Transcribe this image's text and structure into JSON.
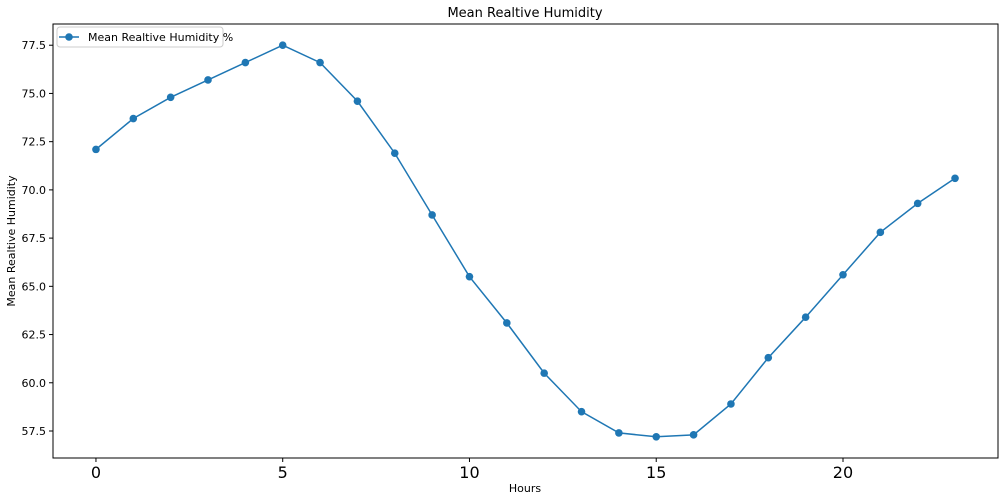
{
  "chart_data": {
    "type": "line",
    "title": "Mean Realtive Humidity",
    "xlabel": "Hours",
    "ylabel": "Mean Realtive Humidity",
    "xlim": [
      -1.15,
      24.15
    ],
    "ylim": [
      56.1,
      78.6
    ],
    "xticks": [
      0,
      5,
      10,
      15,
      20
    ],
    "xtick_labels": [
      "0",
      "5",
      "10",
      "15",
      "20"
    ],
    "yticks": [
      57.5,
      60.0,
      62.5,
      65.0,
      67.5,
      70.0,
      72.5,
      75.0,
      77.5
    ],
    "ytick_labels": [
      "57.5",
      "60.0",
      "62.5",
      "65.0",
      "67.5",
      "70.0",
      "72.5",
      "75.0",
      "77.5"
    ],
    "grid": false,
    "legend_position": "top-left",
    "color": "#1f77b4",
    "series": [
      {
        "name": "Mean Realtive Humidity %",
        "x": [
          0,
          1,
          2,
          3,
          4,
          5,
          6,
          7,
          8,
          9,
          10,
          11,
          12,
          13,
          14,
          15,
          16,
          17,
          18,
          19,
          20,
          21,
          22,
          23
        ],
        "y": [
          72.1,
          73.7,
          74.8,
          75.7,
          76.6,
          77.5,
          76.6,
          74.6,
          71.9,
          68.7,
          65.5,
          63.1,
          60.5,
          58.5,
          57.4,
          57.2,
          57.3,
          58.9,
          61.3,
          63.4,
          65.6,
          67.8,
          69.3,
          70.6
        ]
      }
    ]
  }
}
